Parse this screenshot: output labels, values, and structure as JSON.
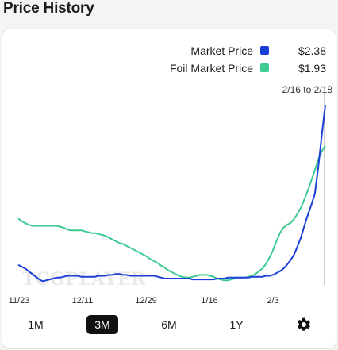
{
  "page": {
    "title": "Price History"
  },
  "legend": [
    {
      "label": "Market Price",
      "value": "$2.38",
      "color": "#1a3fd6"
    },
    {
      "label": "Foil Market Price",
      "value": "$1.93",
      "color": "#3dcb91"
    }
  ],
  "date_range": "2/16 to 2/18",
  "watermark": "TCGPLAYER",
  "range_buttons": [
    {
      "label": "1M",
      "active": false
    },
    {
      "label": "3M",
      "active": true
    },
    {
      "label": "6M",
      "active": false
    },
    {
      "label": "1Y",
      "active": false
    }
  ],
  "settings_icon": "gear-icon",
  "chart_data": {
    "type": "line",
    "x_tick_labels": [
      "11/23",
      "12/11",
      "12/29",
      "1/16",
      "2/3"
    ],
    "x": [
      0,
      1,
      2,
      3,
      4,
      5,
      6,
      7,
      8,
      9,
      10,
      11,
      12,
      13,
      14,
      15,
      16,
      17,
      18,
      19,
      20,
      21,
      22,
      23,
      24,
      25,
      26,
      27,
      28,
      29,
      30,
      31,
      32,
      33,
      34,
      35,
      36,
      37,
      38,
      39,
      40,
      41,
      42,
      43,
      44,
      45,
      46,
      47,
      48,
      49,
      50,
      51,
      52,
      53,
      54,
      55,
      56,
      57,
      58,
      59,
      60,
      61,
      62,
      63,
      64,
      65,
      66,
      67,
      68,
      69,
      70,
      71,
      72,
      73,
      74,
      75,
      76,
      77,
      78,
      79,
      80,
      81,
      82,
      83,
      84,
      85,
      86,
      87,
      88
    ],
    "series": [
      {
        "name": "Market Price",
        "color": "#1a3fd6",
        "values": [
          0.62,
          0.6,
          0.58,
          0.55,
          0.52,
          0.49,
          0.46,
          0.44,
          0.45,
          0.46,
          0.47,
          0.48,
          0.48,
          0.49,
          0.5,
          0.5,
          0.5,
          0.5,
          0.49,
          0.49,
          0.49,
          0.49,
          0.49,
          0.5,
          0.5,
          0.5,
          0.51,
          0.51,
          0.52,
          0.52,
          0.51,
          0.51,
          0.5,
          0.5,
          0.5,
          0.5,
          0.5,
          0.5,
          0.5,
          0.5,
          0.49,
          0.48,
          0.47,
          0.47,
          0.47,
          0.47,
          0.47,
          0.47,
          0.47,
          0.47,
          0.46,
          0.46,
          0.46,
          0.46,
          0.46,
          0.46,
          0.46,
          0.47,
          0.47,
          0.47,
          0.48,
          0.48,
          0.48,
          0.48,
          0.48,
          0.48,
          0.48,
          0.49,
          0.49,
          0.49,
          0.49,
          0.5,
          0.5,
          0.51,
          0.53,
          0.55,
          0.58,
          0.62,
          0.67,
          0.73,
          0.82,
          0.92,
          1.05,
          1.17,
          1.28,
          1.4,
          1.7,
          2.05,
          2.38
        ]
      },
      {
        "name": "Foil Market Price",
        "color": "#3dcb91",
        "values": [
          1.13,
          1.1,
          1.08,
          1.06,
          1.05,
          1.05,
          1.05,
          1.05,
          1.05,
          1.05,
          1.05,
          1.05,
          1.04,
          1.03,
          1.01,
          1.0,
          1.0,
          1.0,
          1.0,
          0.99,
          0.98,
          0.97,
          0.97,
          0.96,
          0.95,
          0.94,
          0.92,
          0.9,
          0.88,
          0.86,
          0.85,
          0.83,
          0.81,
          0.79,
          0.77,
          0.75,
          0.73,
          0.71,
          0.68,
          0.66,
          0.64,
          0.61,
          0.59,
          0.56,
          0.54,
          0.52,
          0.5,
          0.49,
          0.48,
          0.48,
          0.49,
          0.5,
          0.51,
          0.51,
          0.51,
          0.5,
          0.49,
          0.47,
          0.46,
          0.45,
          0.45,
          0.46,
          0.47,
          0.48,
          0.48,
          0.48,
          0.49,
          0.5,
          0.52,
          0.55,
          0.58,
          0.63,
          0.7,
          0.78,
          0.88,
          0.97,
          1.03,
          1.06,
          1.08,
          1.12,
          1.18,
          1.25,
          1.34,
          1.44,
          1.55,
          1.66,
          1.78,
          1.87,
          1.93
        ]
      }
    ]
  }
}
